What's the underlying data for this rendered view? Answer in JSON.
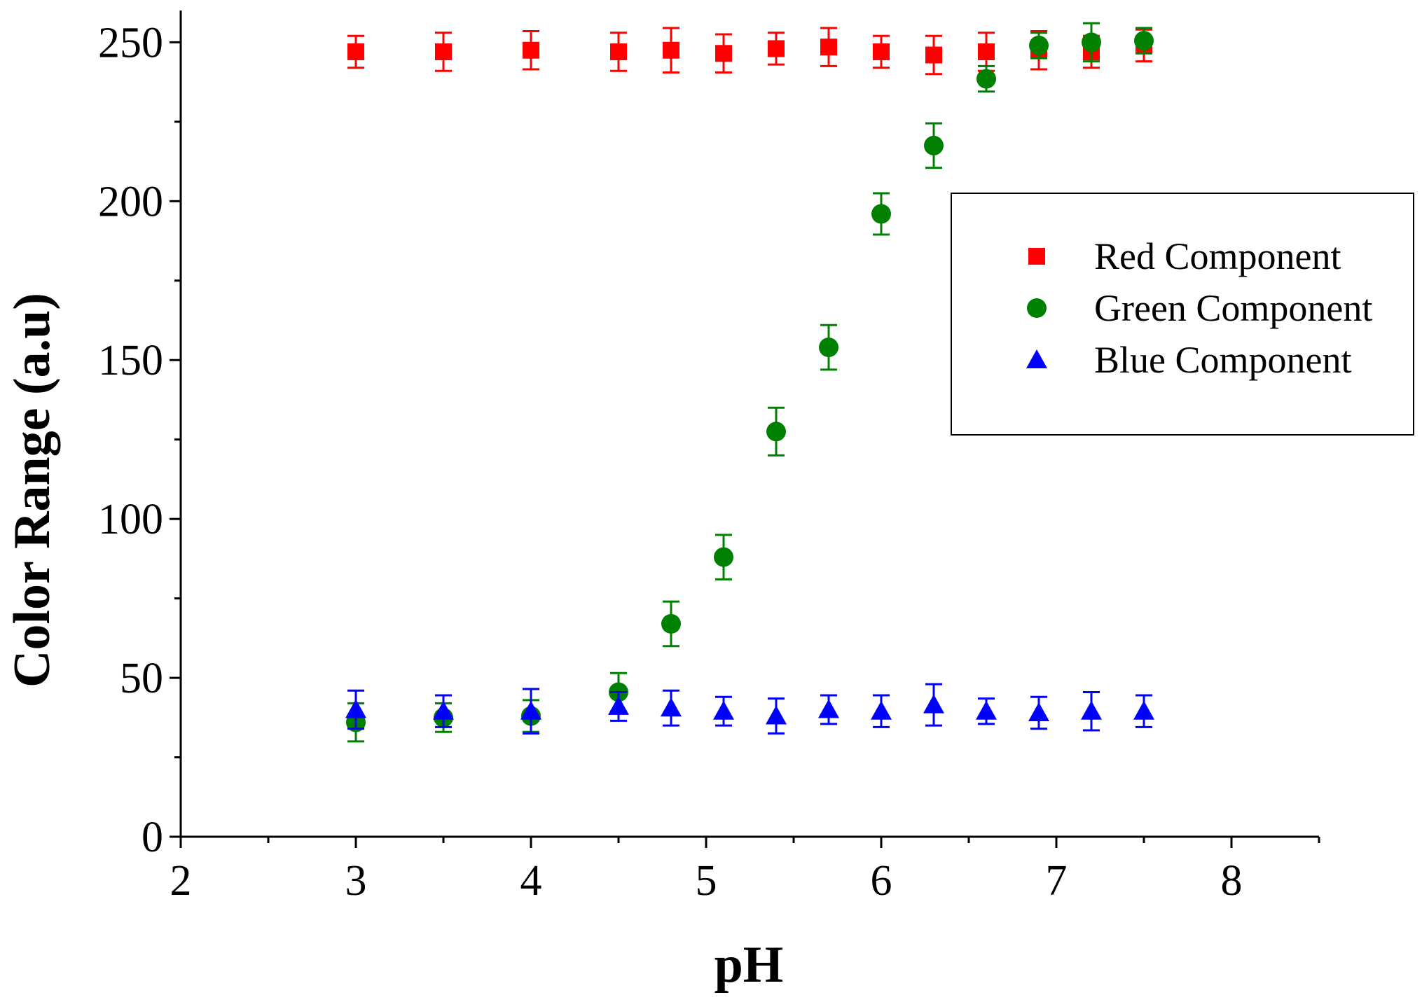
{
  "chart_data": {
    "type": "scatter",
    "title": "",
    "xlabel": "pH",
    "ylabel": "Color Range (a.u)",
    "xlim": [
      2,
      8.5
    ],
    "ylim": [
      0,
      260
    ],
    "x_ticks": [
      2,
      3,
      4,
      5,
      6,
      7,
      8
    ],
    "x_tick_labels": [
      "2",
      "3",
      "4",
      "5",
      "6",
      "7",
      "8"
    ],
    "y_ticks": [
      0,
      50,
      100,
      150,
      200,
      250
    ],
    "y_tick_labels": [
      "0",
      "50",
      "100",
      "150",
      "200",
      "250"
    ],
    "grid": false,
    "legend_position": "top-right",
    "x": [
      3.0,
      3.5,
      4.0,
      4.5,
      4.8,
      5.1,
      5.4,
      5.7,
      6.0,
      6.3,
      6.6,
      6.9,
      7.2,
      7.5
    ],
    "series": [
      {
        "name": "Red Component",
        "marker": "square",
        "color": "#ff0000",
        "values": [
          247,
          247,
          247.5,
          247,
          247.5,
          246.5,
          248,
          248.5,
          247,
          246,
          247,
          247.5,
          247,
          249
        ],
        "errors": [
          5,
          6,
          6,
          6,
          7,
          6,
          5,
          6,
          5,
          6,
          6,
          6,
          5,
          5
        ]
      },
      {
        "name": "Green Component",
        "marker": "circle",
        "color": "#008000",
        "values": [
          36,
          37.5,
          38,
          45.5,
          67,
          88,
          127.5,
          154,
          196,
          217.5,
          238.5,
          249,
          250,
          250.5
        ],
        "errors": [
          6,
          4.5,
          5,
          6,
          7,
          7,
          7.5,
          7,
          6.5,
          7,
          4,
          4,
          6,
          4
        ]
      },
      {
        "name": "Blue Component",
        "marker": "triangle",
        "color": "#0000ff",
        "values": [
          40,
          39.5,
          39.5,
          41,
          40.5,
          39.5,
          38,
          40,
          39.5,
          41.5,
          39.5,
          39,
          39.5,
          39.5
        ],
        "errors": [
          6,
          5,
          7,
          4.5,
          5.5,
          4.5,
          5.5,
          4.5,
          5,
          6.5,
          4,
          5,
          6,
          5
        ]
      }
    ]
  }
}
